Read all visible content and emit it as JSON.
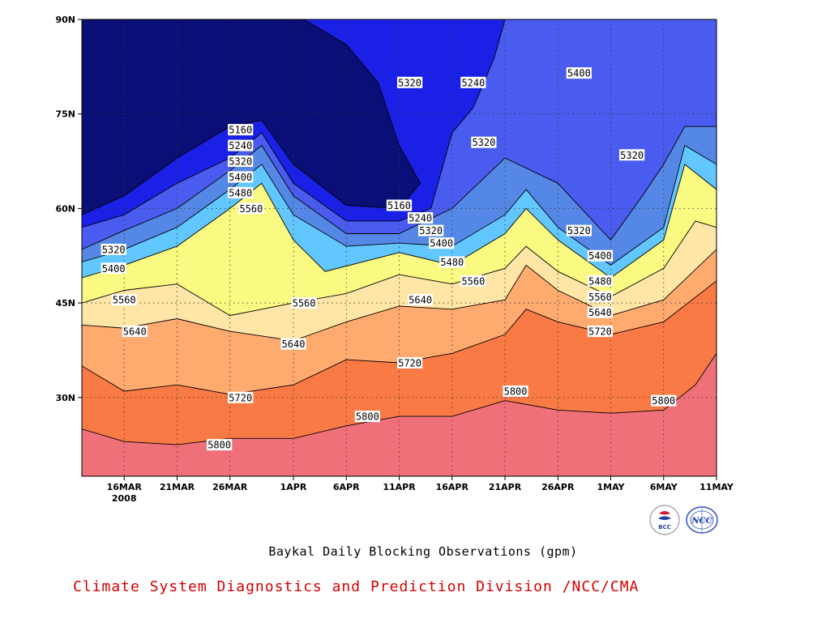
{
  "chart_data": {
    "type": "contour",
    "title": "Baykal Daily Blocking Observations (gpm)",
    "credit": "Climate System Diagnostics and Prediction Division /NCC/CMA",
    "x_ticks": [
      {
        "label": "16MAR",
        "sub": "2008",
        "date": "2008-03-16"
      },
      {
        "label": "21MAR",
        "sub": "",
        "date": "2008-03-21"
      },
      {
        "label": "26MAR",
        "sub": "",
        "date": "2008-03-26"
      },
      {
        "label": "1APR",
        "sub": "",
        "date": "2008-04-01"
      },
      {
        "label": "6APR",
        "sub": "",
        "date": "2008-04-06"
      },
      {
        "label": "11APR",
        "sub": "",
        "date": "2008-04-11"
      },
      {
        "label": "16APR",
        "sub": "",
        "date": "2008-04-16"
      },
      {
        "label": "21APR",
        "sub": "",
        "date": "2008-04-21"
      },
      {
        "label": "26APR",
        "sub": "",
        "date": "2008-04-26"
      },
      {
        "label": "1MAY",
        "sub": "",
        "date": "2008-05-01"
      },
      {
        "label": "6MAY",
        "sub": "",
        "date": "2008-05-06"
      },
      {
        "label": "11MAY",
        "sub": "",
        "date": "2008-05-11"
      }
    ],
    "y_ticks": [
      {
        "label": "30N",
        "value": 30
      },
      {
        "label": "45N",
        "value": 45
      },
      {
        "label": "60N",
        "value": 60
      },
      {
        "label": "75N",
        "value": 75
      },
      {
        "label": "90N",
        "value": 90
      }
    ],
    "x_range": [
      "2008-03-12",
      "2008-05-11"
    ],
    "y_range": [
      17.5,
      90
    ],
    "grid": "dotted",
    "levels": [
      {
        "min": null,
        "max": 5160,
        "color": "#0a0f78"
      },
      {
        "min": 5160,
        "max": 5240,
        "color": "#1a20e6"
      },
      {
        "min": 5240,
        "max": 5320,
        "color": "#4a5cf0"
      },
      {
        "min": 5320,
        "max": 5400,
        "color": "#5588e6"
      },
      {
        "min": 5400,
        "max": 5480,
        "color": "#62c6ff"
      },
      {
        "min": 5480,
        "max": 5560,
        "color": "#fafa82"
      },
      {
        "min": 5560,
        "max": 5640,
        "color": "#ffe6a6"
      },
      {
        "min": 5640,
        "max": 5720,
        "color": "#ffaa6e"
      },
      {
        "min": 5720,
        "max": 5800,
        "color": "#fa7a46"
      },
      {
        "min": 5800,
        "max": null,
        "color": "#f0707a"
      }
    ],
    "contour_lines": [
      {
        "value": 5800,
        "points": [
          [
            "2008-03-12",
            25
          ],
          [
            "2008-03-16",
            23
          ],
          [
            "2008-03-21",
            22.5
          ],
          [
            "2008-03-26",
            23.5
          ],
          [
            "2008-04-01",
            23.5
          ],
          [
            "2008-04-06",
            25.5
          ],
          [
            "2008-04-11",
            27
          ],
          [
            "2008-04-16",
            27
          ],
          [
            "2008-04-21",
            29.5
          ],
          [
            "2008-04-26",
            28
          ],
          [
            "2008-05-01",
            27.5
          ],
          [
            "2008-05-06",
            28
          ],
          [
            "2008-05-09",
            32
          ],
          [
            "2008-05-11",
            37
          ]
        ]
      },
      {
        "value": 5720,
        "points": [
          [
            "2008-03-12",
            35
          ],
          [
            "2008-03-16",
            31
          ],
          [
            "2008-03-21",
            32
          ],
          [
            "2008-03-26",
            30.5
          ],
          [
            "2008-04-01",
            32
          ],
          [
            "2008-04-06",
            36
          ],
          [
            "2008-04-11",
            35.5
          ],
          [
            "2008-04-16",
            37
          ],
          [
            "2008-04-21",
            40
          ],
          [
            "2008-04-23",
            44
          ],
          [
            "2008-04-26",
            42
          ],
          [
            "2008-05-01",
            40
          ],
          [
            "2008-05-06",
            42
          ],
          [
            "2008-05-11",
            48.5
          ]
        ]
      },
      {
        "value": 5640,
        "points": [
          [
            "2008-03-12",
            41.5
          ],
          [
            "2008-03-16",
            41
          ],
          [
            "2008-03-21",
            42.5
          ],
          [
            "2008-03-26",
            40.5
          ],
          [
            "2008-04-01",
            39
          ],
          [
            "2008-04-06",
            42
          ],
          [
            "2008-04-11",
            44.5
          ],
          [
            "2008-04-16",
            44
          ],
          [
            "2008-04-21",
            45.5
          ],
          [
            "2008-04-23",
            51
          ],
          [
            "2008-04-26",
            47
          ],
          [
            "2008-05-01",
            43
          ],
          [
            "2008-05-06",
            45.5
          ],
          [
            "2008-05-11",
            53.5
          ]
        ]
      },
      {
        "value": 5560,
        "points": [
          [
            "2008-03-12",
            45
          ],
          [
            "2008-03-16",
            47
          ],
          [
            "2008-03-21",
            48
          ],
          [
            "2008-03-26",
            43
          ],
          [
            "2008-04-01",
            45
          ],
          [
            "2008-04-06",
            46.5
          ],
          [
            "2008-04-11",
            49.5
          ],
          [
            "2008-04-16",
            48
          ],
          [
            "2008-04-21",
            50.5
          ],
          [
            "2008-04-23",
            54
          ],
          [
            "2008-04-26",
            50
          ],
          [
            "2008-05-01",
            46
          ],
          [
            "2008-05-06",
            50.5
          ],
          [
            "2008-05-09",
            58
          ],
          [
            "2008-05-11",
            57
          ]
        ]
      },
      {
        "value": 5480,
        "points": [
          [
            "2008-03-12",
            49
          ],
          [
            "2008-03-16",
            51
          ],
          [
            "2008-03-21",
            54
          ],
          [
            "2008-03-26",
            60
          ],
          [
            "2008-03-29",
            64
          ],
          [
            "2008-04-01",
            55
          ],
          [
            "2008-04-04",
            50
          ],
          [
            "2008-04-11",
            53
          ],
          [
            "2008-04-16",
            51
          ],
          [
            "2008-04-21",
            56
          ],
          [
            "2008-04-23",
            60
          ],
          [
            "2008-04-26",
            55
          ],
          [
            "2008-05-01",
            49
          ],
          [
            "2008-05-06",
            55
          ],
          [
            "2008-05-08",
            67
          ],
          [
            "2008-05-11",
            63
          ]
        ]
      },
      {
        "value": 5400,
        "points": [
          [
            "2008-03-12",
            51.5
          ],
          [
            "2008-03-16",
            53.5
          ],
          [
            "2008-03-21",
            57
          ],
          [
            "2008-03-26",
            63
          ],
          [
            "2008-03-29",
            67
          ],
          [
            "2008-04-01",
            59
          ],
          [
            "2008-04-06",
            54
          ],
          [
            "2008-04-11",
            54.5
          ],
          [
            "2008-04-16",
            54
          ],
          [
            "2008-04-21",
            59
          ],
          [
            "2008-04-23",
            63
          ],
          [
            "2008-04-26",
            57
          ],
          [
            "2008-05-01",
            51
          ],
          [
            "2008-05-06",
            57
          ],
          [
            "2008-05-08",
            70
          ],
          [
            "2008-05-11",
            67
          ]
        ]
      },
      {
        "value": 5320,
        "points": [
          [
            "2008-03-12",
            53.5
          ],
          [
            "2008-03-16",
            56.5
          ],
          [
            "2008-03-21",
            60
          ],
          [
            "2008-03-26",
            66
          ],
          [
            "2008-03-29",
            70
          ],
          [
            "2008-04-01",
            62
          ],
          [
            "2008-04-06",
            56
          ],
          [
            "2008-04-11",
            56
          ],
          [
            "2008-04-16",
            60
          ],
          [
            "2008-04-21",
            68
          ],
          [
            "2008-04-26",
            64
          ],
          [
            "2008-05-01",
            55
          ],
          [
            "2008-05-04",
            62
          ],
          [
            "2008-05-06",
            67
          ],
          [
            "2008-05-08",
            73
          ],
          [
            "2008-05-11",
            73
          ]
        ]
      },
      {
        "value": 5240,
        "points": [
          [
            "2008-03-12",
            57
          ],
          [
            "2008-03-16",
            59
          ],
          [
            "2008-03-21",
            64
          ],
          [
            "2008-03-26",
            68
          ],
          [
            "2008-03-29",
            72
          ],
          [
            "2008-04-01",
            64
          ],
          [
            "2008-04-06",
            58
          ],
          [
            "2008-04-11",
            58
          ],
          [
            "2008-04-14",
            60
          ],
          [
            "2008-04-16",
            72
          ],
          [
            "2008-04-18",
            76
          ],
          [
            "2008-04-20",
            84
          ],
          [
            "2008-04-21",
            90
          ]
        ]
      },
      {
        "value": 5160,
        "points": [
          [
            "2008-03-12",
            59
          ],
          [
            "2008-03-16",
            62
          ],
          [
            "2008-03-21",
            68
          ],
          [
            "2008-03-26",
            73
          ],
          [
            "2008-03-29",
            74
          ],
          [
            "2008-04-01",
            67
          ],
          [
            "2008-04-06",
            60.5
          ],
          [
            "2008-04-11",
            60
          ],
          [
            "2008-04-13",
            64
          ],
          [
            "2008-04-11",
            70
          ],
          [
            "2008-04-09",
            80
          ],
          [
            "2008-04-06",
            86
          ],
          [
            "2008-04-02",
            90
          ]
        ]
      }
    ],
    "contour_labels": [
      {
        "text": "5160",
        "x": "2008-03-27",
        "y": 72.5
      },
      {
        "text": "5240",
        "x": "2008-03-27",
        "y": 70
      },
      {
        "text": "5320",
        "x": "2008-03-27",
        "y": 67.5
      },
      {
        "text": "5400",
        "x": "2008-03-27",
        "y": 65
      },
      {
        "text": "5480",
        "x": "2008-03-27",
        "y": 62.5
      },
      {
        "text": "5560",
        "x": "2008-03-28",
        "y": 60
      },
      {
        "text": "5320",
        "x": "2008-03-15",
        "y": 53.5
      },
      {
        "text": "5400",
        "x": "2008-03-15",
        "y": 50.5
      },
      {
        "text": "5560",
        "x": "2008-03-16",
        "y": 45.5
      },
      {
        "text": "5640",
        "x": "2008-03-17",
        "y": 40.5
      },
      {
        "text": "5560",
        "x": "2008-04-02",
        "y": 45
      },
      {
        "text": "5640",
        "x": "2008-04-01",
        "y": 38.5
      },
      {
        "text": "5720",
        "x": "2008-03-27",
        "y": 30
      },
      {
        "text": "5800",
        "x": "2008-03-25",
        "y": 22.5
      },
      {
        "text": "5800",
        "x": "2008-04-08",
        "y": 27
      },
      {
        "text": "5720",
        "x": "2008-04-12",
        "y": 35.5
      },
      {
        "text": "5640",
        "x": "2008-04-13",
        "y": 45.5
      },
      {
        "text": "5560",
        "x": "2008-04-18",
        "y": 48.5
      },
      {
        "text": "5480",
        "x": "2008-04-16",
        "y": 51.5
      },
      {
        "text": "5400",
        "x": "2008-04-15",
        "y": 54.5
      },
      {
        "text": "5320",
        "x": "2008-04-14",
        "y": 56.5
      },
      {
        "text": "5240",
        "x": "2008-04-13",
        "y": 58.5
      },
      {
        "text": "5160",
        "x": "2008-04-11",
        "y": 60.5
      },
      {
        "text": "5320",
        "x": "2008-04-12",
        "y": 80
      },
      {
        "text": "5240",
        "x": "2008-04-18",
        "y": 80
      },
      {
        "text": "5320",
        "x": "2008-04-19",
        "y": 70.5
      },
      {
        "text": "5400",
        "x": "2008-04-28",
        "y": 81.5
      },
      {
        "text": "5320",
        "x": "2008-05-03",
        "y": 68.5
      },
      {
        "text": "5320",
        "x": "2008-04-28",
        "y": 56.5
      },
      {
        "text": "5400",
        "x": "2008-04-30",
        "y": 52.5
      },
      {
        "text": "5480",
        "x": "2008-04-30",
        "y": 48.5
      },
      {
        "text": "5560",
        "x": "2008-04-30",
        "y": 46
      },
      {
        "text": "5640",
        "x": "2008-04-30",
        "y": 43.5
      },
      {
        "text": "5720",
        "x": "2008-04-30",
        "y": 40.5
      },
      {
        "text": "5800",
        "x": "2008-05-06",
        "y": 29.5
      },
      {
        "text": "5800",
        "x": "2008-04-22",
        "y": 31
      }
    ]
  }
}
